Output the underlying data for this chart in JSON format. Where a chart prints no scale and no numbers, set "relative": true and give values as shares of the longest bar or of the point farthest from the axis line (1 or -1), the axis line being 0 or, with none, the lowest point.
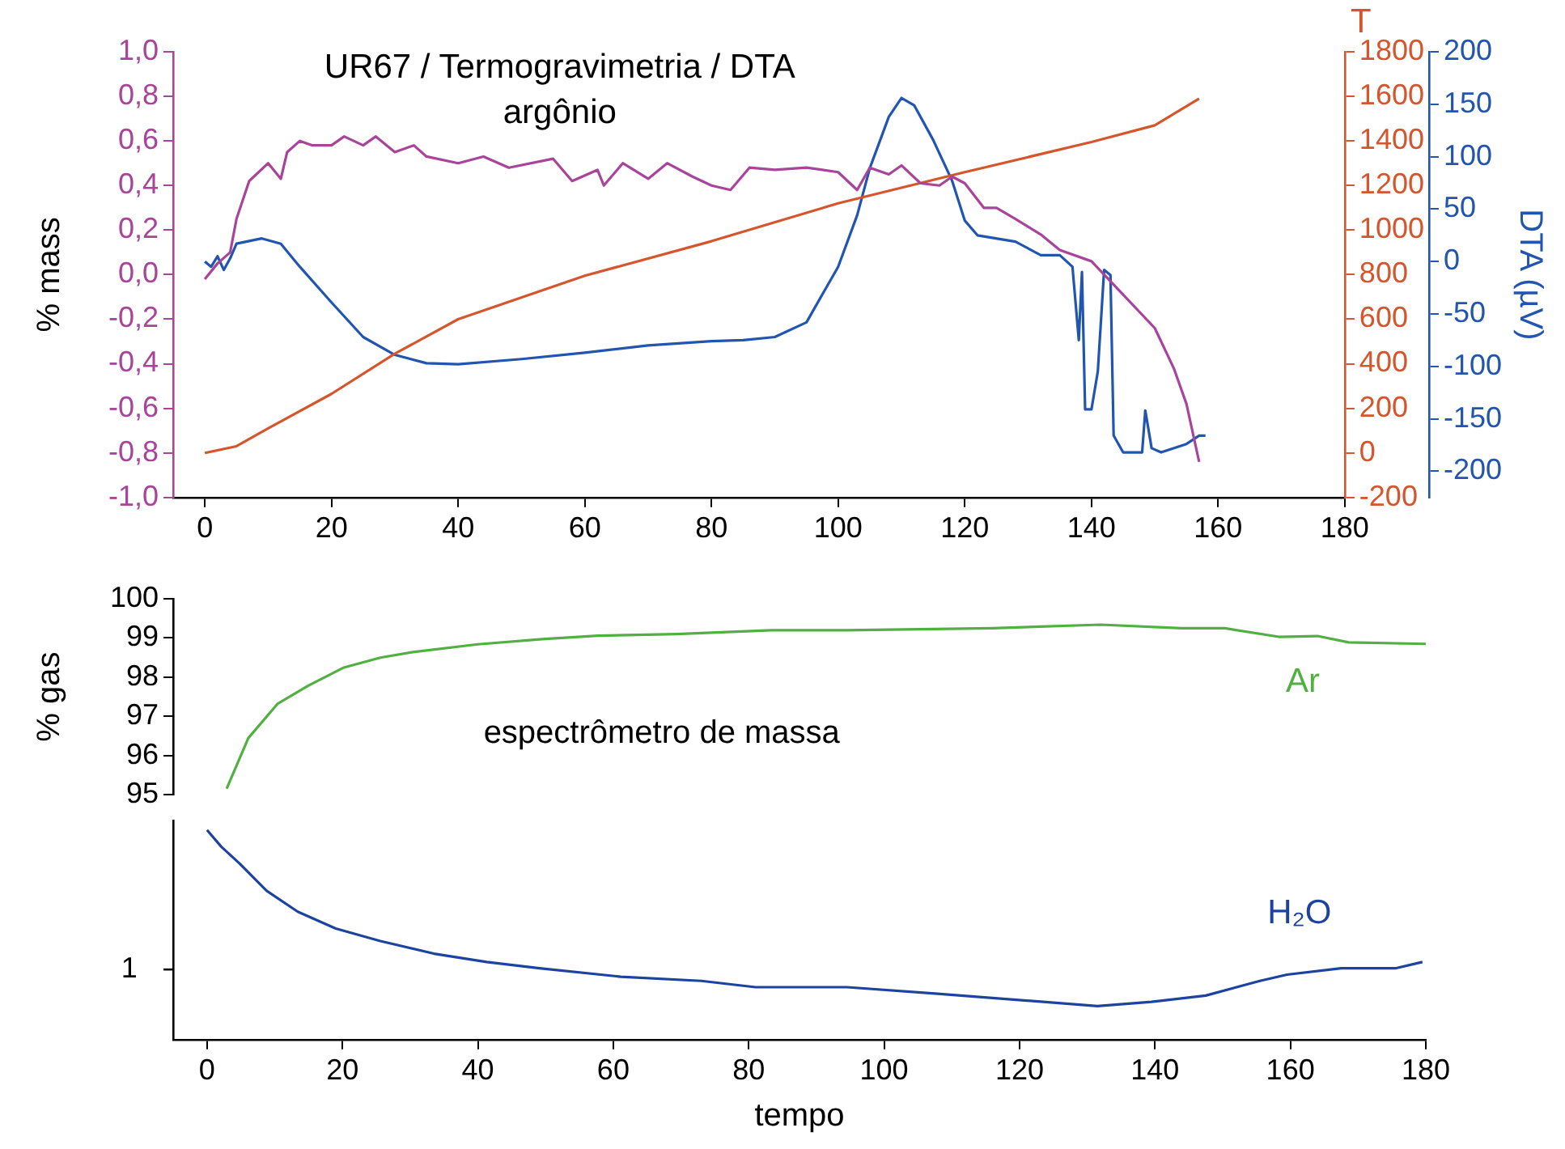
{
  "chart_data": [
    {
      "type": "line",
      "title": "UR67 / Termogravimetria / DTA",
      "subtitle": "argônio",
      "ylabel": "% mass",
      "y2label": "T",
      "y3label": "DTA (µV)",
      "marker": "none",
      "line_style": "solid",
      "xlim": [
        -5,
        180
      ],
      "xticks": [
        0,
        20,
        40,
        60,
        80,
        100,
        120,
        140,
        160,
        180
      ],
      "ylim": [
        -1,
        1
      ],
      "yticks": [
        {
          "value": -1,
          "label": "-1,0"
        },
        {
          "value": -0.8,
          "label": "-0,8"
        },
        {
          "value": -0.6,
          "label": "-0,6"
        },
        {
          "value": -0.4,
          "label": "-0,4"
        },
        {
          "value": -0.2,
          "label": "-0,2"
        },
        {
          "value": 0,
          "label": "0,0"
        },
        {
          "value": 0.2,
          "label": "0,2"
        },
        {
          "value": 0.4,
          "label": "0,4"
        },
        {
          "value": 0.6,
          "label": "0,6"
        },
        {
          "value": 0.8,
          "label": "0,8"
        },
        {
          "value": 1,
          "label": "1,0"
        }
      ],
      "y2lim": [
        -200,
        1800
      ],
      "y2ticks": [
        -200,
        0,
        200,
        400,
        600,
        800,
        1000,
        1200,
        1400,
        1600,
        1800
      ],
      "y3lim": [
        -225,
        200
      ],
      "y3ticks": [
        -200,
        -150,
        -100,
        -50,
        0,
        50,
        100,
        150,
        200
      ],
      "series": [
        {
          "color": "#a8449a",
          "x": [
            0,
            2,
            4,
            5,
            7,
            10,
            12,
            13,
            15,
            17,
            20,
            22,
            25,
            27,
            30,
            33,
            35,
            40,
            44,
            48,
            55,
            58,
            62,
            63,
            66,
            70,
            73,
            77,
            80,
            83,
            86,
            90,
            95,
            100,
            103,
            105,
            108,
            110,
            113,
            116,
            118,
            120,
            123,
            125,
            128,
            132,
            135,
            140,
            145,
            150,
            153,
            155,
            157
          ],
          "values": [
            -0.02,
            0.05,
            0.1,
            0.25,
            0.42,
            0.5,
            0.43,
            0.55,
            0.6,
            0.58,
            0.58,
            0.62,
            0.58,
            0.62,
            0.55,
            0.58,
            0.53,
            0.5,
            0.53,
            0.48,
            0.52,
            0.42,
            0.47,
            0.4,
            0.5,
            0.43,
            0.5,
            0.44,
            0.4,
            0.38,
            0.48,
            0.47,
            0.48,
            0.46,
            0.38,
            0.48,
            0.45,
            0.49,
            0.41,
            0.4,
            0.44,
            0.41,
            0.3,
            0.3,
            0.25,
            0.18,
            0.11,
            0.06,
            -0.09,
            -0.24,
            -0.42,
            -0.58,
            -0.84
          ]
        },
        {
          "color": "#d5552c",
          "axis": "y2",
          "x": [
            0,
            5,
            10,
            20,
            30,
            40,
            60,
            80,
            100,
            120,
            140,
            150,
            157
          ],
          "values": [
            0,
            30,
            110,
            265,
            445,
            600,
            795,
            950,
            1120,
            1260,
            1395,
            1470,
            1590
          ]
        },
        {
          "color": "#2155b0",
          "axis": "y3",
          "x": [
            0,
            1,
            2,
            3,
            4,
            5,
            9,
            12,
            15,
            20,
            25,
            30,
            35,
            40,
            50,
            60,
            70,
            80,
            85,
            90,
            95,
            100,
            103,
            105,
            108,
            110,
            112,
            115,
            118,
            120,
            122,
            128,
            132,
            135,
            137,
            138,
            138.5,
            139,
            140,
            141,
            142,
            143,
            143.5,
            145,
            148,
            148.5,
            149.5,
            151,
            155,
            157,
            158
          ],
          "values": [
            0,
            -5,
            5,
            -8,
            3,
            17,
            22,
            17,
            -5,
            -39,
            -72,
            -89,
            -97,
            -98,
            -93,
            -87,
            -80,
            -76,
            -75,
            -72,
            -58,
            -5,
            44,
            89,
            138,
            156,
            149,
            116,
            77,
            39,
            25,
            19,
            6,
            6,
            -5,
            -75,
            -10,
            -141,
            -141,
            -105,
            -8,
            -13,
            -166,
            -182,
            -182,
            -142,
            -178,
            -182,
            -174,
            -166,
            -166
          ]
        }
      ]
    },
    {
      "type": "line",
      "ylabel": "% gas",
      "marker": "none",
      "line_style": "solid",
      "tick_labels": "y",
      "annotations": [
        "espectrômetro de massa"
      ],
      "xlim": [
        -5,
        180
      ],
      "ylim": [
        95,
        100
      ],
      "yticks": [
        95,
        96,
        97,
        98,
        99,
        100
      ],
      "series": [
        {
          "name": "Ar",
          "color": "#52b043",
          "x": [
            2.9,
            6.1,
            10.4,
            14.9,
            20.1,
            25.6,
            30.4,
            40,
            49.5,
            57.7,
            69.3,
            83.4,
            94.5,
            116,
            132,
            143.9,
            150.3,
            158.3,
            164,
            168.6,
            180
          ],
          "values": [
            95.16,
            96.45,
            97.32,
            97.78,
            98.24,
            98.5,
            98.64,
            98.84,
            98.97,
            99.06,
            99.1,
            99.2,
            99.2,
            99.25,
            99.34,
            99.25,
            99.25,
            99.03,
            99.05,
            98.89,
            98.85
          ]
        }
      ]
    },
    {
      "type": "line",
      "xlabel": "tempo",
      "relative": true,
      "marker": "none",
      "line_style": "solid",
      "xlim": [
        -5,
        180
      ],
      "xticks": [
        0,
        20,
        40,
        60,
        80,
        100,
        120,
        140,
        160,
        180
      ],
      "annotations": [
        "1"
      ],
      "series": [
        {
          "name": "H₂O",
          "color": "#1d43a0",
          "x": [
            0,
            2.1,
            4.8,
            8.8,
            13.4,
            19,
            25.6,
            33.5,
            41.3,
            49.1,
            61.1,
            73,
            81,
            94.5,
            107.5,
            123.5,
            131.5,
            139.5,
            147.5,
            155.5,
            159.5,
            167.5,
            175.5,
            179.5
          ],
          "values": [
            1,
            0.92,
            0.84,
            0.71,
            0.61,
            0.53,
            0.47,
            0.41,
            0.37,
            0.34,
            0.3,
            0.28,
            0.25,
            0.25,
            0.22,
            0.18,
            0.16,
            0.18,
            0.21,
            0.28,
            0.31,
            0.34,
            0.34,
            0.37
          ]
        }
      ]
    }
  ]
}
